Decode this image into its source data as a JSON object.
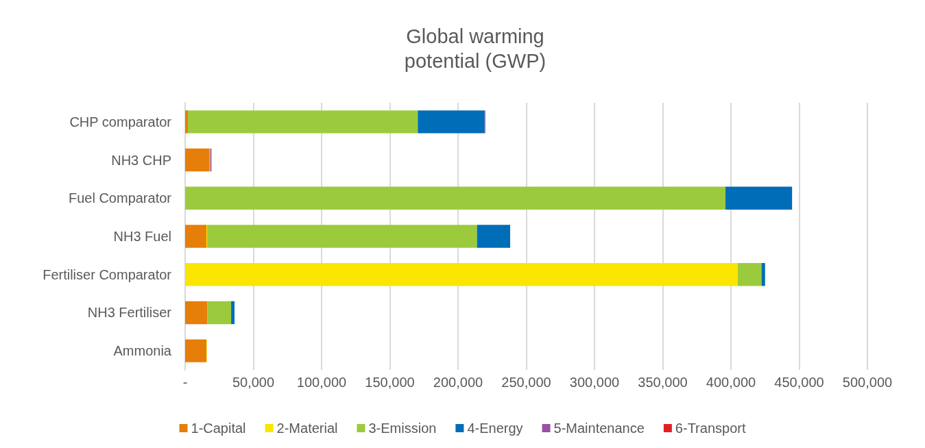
{
  "chart_data": {
    "type": "bar",
    "orientation": "horizontal",
    "stacked": true,
    "title": "Global warming\npotential (GWP)",
    "categories": [
      "CHP comparator",
      "NH3 CHP",
      "Fuel Comparator",
      "NH3 Fuel",
      "Fertiliser Comparator",
      "NH3 Fertiliser",
      "Ammonia"
    ],
    "series": [
      {
        "name": "1-Capital",
        "color": "#e67e0a",
        "values": [
          2000,
          18000,
          0,
          15600,
          0,
          16200,
          15600
        ]
      },
      {
        "name": "2-Material",
        "color": "#fae600",
        "values": [
          0,
          400,
          0,
          500,
          405000,
          0,
          300
        ]
      },
      {
        "name": "3-Emission",
        "color": "#9bcb3c",
        "values": [
          168500,
          0,
          396000,
          197800,
          17400,
          17500,
          0
        ]
      },
      {
        "name": "4-Energy",
        "color": "#006db8",
        "values": [
          49000,
          0,
          48800,
          24300,
          2600,
          2500,
          0
        ]
      },
      {
        "name": "5-Maintenance",
        "color": "#9b4fa5",
        "values": [
          500,
          900,
          0,
          0,
          0,
          0,
          0
        ]
      },
      {
        "name": "6-Transport",
        "color": "#e02020",
        "values": [
          0,
          0,
          0,
          0,
          0,
          0,
          0
        ]
      }
    ],
    "xlim": [
      0,
      500000
    ],
    "xticks": [
      {
        "value": 0,
        "label": "-"
      },
      {
        "value": 50000,
        "label": "50,000"
      },
      {
        "value": 100000,
        "label": "100,000"
      },
      {
        "value": 150000,
        "label": "150,000"
      },
      {
        "value": 200000,
        "label": "200,000"
      },
      {
        "value": 250000,
        "label": "250,000"
      },
      {
        "value": 300000,
        "label": "300,000"
      },
      {
        "value": 350000,
        "label": "350,000"
      },
      {
        "value": 400000,
        "label": "400,000"
      },
      {
        "value": 450000,
        "label": "450,000"
      },
      {
        "value": 500000,
        "label": "500,000"
      }
    ],
    "grid": "x",
    "legend": "bottom"
  }
}
